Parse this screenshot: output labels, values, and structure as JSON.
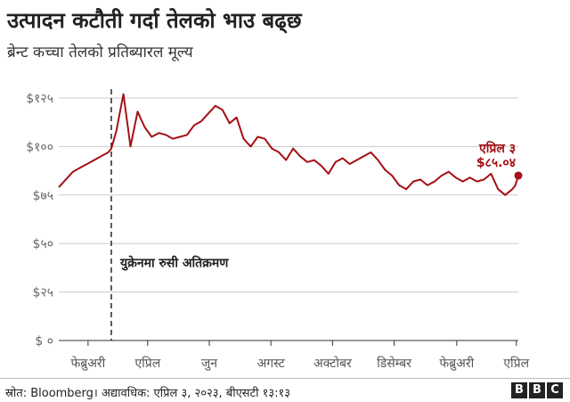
{
  "header": {
    "title": "उत्पादन कटौती गर्दा तेलको भाउ बढ्छ",
    "subtitle": "ब्रेन्ट कच्चा तेलको प्रतिब्यारल मूल्य"
  },
  "footer": {
    "source": "स्रोत: Bloomberg। अद्यावधिक: एप्रिल ३, २०२३, बीएसटी १३:१३",
    "logo_letters": [
      "B",
      "B",
      "C"
    ]
  },
  "chart_data": {
    "type": "line",
    "title": "उत्पादन कटौती गर्दा तेलको भाउ बढ्छ",
    "subtitle": "ब्रेन्ट कच्चा तेलको प्रतिब्यारल मूल्य",
    "line_color": "#a50f15",
    "ylim": [
      0,
      125
    ],
    "y_ticks": [
      {
        "value": 0,
        "label": "$ ०"
      },
      {
        "value": 25,
        "label": "$२५"
      },
      {
        "value": 50,
        "label": "$५०"
      },
      {
        "value": 75,
        "label": "$७५"
      },
      {
        "value": 100,
        "label": "$१००"
      },
      {
        "value": 125,
        "label": "$१२५"
      }
    ],
    "x_ticks": [
      {
        "value": "2022-02-01",
        "label": "फेब्रुअरी"
      },
      {
        "value": "2022-04-01",
        "label": "एप्रिल"
      },
      {
        "value": "2022-06-01",
        "label": "जुन"
      },
      {
        "value": "2022-08-01",
        "label": "अगस्ट"
      },
      {
        "value": "2022-10-01",
        "label": "अक्टोबर"
      },
      {
        "value": "2022-12-01",
        "label": "डिसेम्बर"
      },
      {
        "value": "2023-02-01",
        "label": "फेब्रुअरी"
      },
      {
        "value": "2023-04-01",
        "label": "एप्रिल"
      }
    ],
    "x_range": [
      "2022-01-03",
      "2023-04-03"
    ],
    "grid": "horizontal",
    "series": [
      {
        "points": [
          [
            "2022-01-03",
            79
          ],
          [
            "2022-01-10",
            83
          ],
          [
            "2022-01-17",
            87
          ],
          [
            "2022-01-24",
            89
          ],
          [
            "2022-01-31",
            91
          ],
          [
            "2022-02-07",
            93
          ],
          [
            "2022-02-14",
            95
          ],
          [
            "2022-02-21",
            97
          ],
          [
            "2022-02-24",
            99
          ],
          [
            "2022-03-01",
            108
          ],
          [
            "2022-03-08",
            127
          ],
          [
            "2022-03-15",
            100
          ],
          [
            "2022-03-22",
            118
          ],
          [
            "2022-03-29",
            110
          ],
          [
            "2022-04-05",
            105
          ],
          [
            "2022-04-12",
            107
          ],
          [
            "2022-04-19",
            106
          ],
          [
            "2022-04-26",
            104
          ],
          [
            "2022-05-03",
            105
          ],
          [
            "2022-05-10",
            106
          ],
          [
            "2022-05-17",
            111
          ],
          [
            "2022-05-24",
            113
          ],
          [
            "2022-05-31",
            117
          ],
          [
            "2022-06-07",
            121
          ],
          [
            "2022-06-14",
            119
          ],
          [
            "2022-06-21",
            112
          ],
          [
            "2022-06-28",
            115
          ],
          [
            "2022-07-05",
            104
          ],
          [
            "2022-07-12",
            100
          ],
          [
            "2022-07-19",
            105
          ],
          [
            "2022-07-26",
            104
          ],
          [
            "2022-08-02",
            99
          ],
          [
            "2022-08-09",
            97
          ],
          [
            "2022-08-16",
            93
          ],
          [
            "2022-08-23",
            99
          ],
          [
            "2022-08-30",
            95
          ],
          [
            "2022-09-06",
            92
          ],
          [
            "2022-09-13",
            93
          ],
          [
            "2022-09-20",
            90
          ],
          [
            "2022-09-27",
            86
          ],
          [
            "2022-10-04",
            92
          ],
          [
            "2022-10-11",
            94
          ],
          [
            "2022-10-18",
            91
          ],
          [
            "2022-10-25",
            93
          ],
          [
            "2022-11-01",
            95
          ],
          [
            "2022-11-08",
            97
          ],
          [
            "2022-11-15",
            93
          ],
          [
            "2022-11-22",
            88
          ],
          [
            "2022-11-29",
            85
          ],
          [
            "2022-12-06",
            80
          ],
          [
            "2022-12-13",
            78
          ],
          [
            "2022-12-20",
            82
          ],
          [
            "2022-12-27",
            83
          ],
          [
            "2023-01-03",
            80
          ],
          [
            "2023-01-10",
            82
          ],
          [
            "2023-01-17",
            85
          ],
          [
            "2023-01-24",
            87
          ],
          [
            "2023-01-31",
            84
          ],
          [
            "2023-02-07",
            82
          ],
          [
            "2023-02-14",
            84
          ],
          [
            "2023-02-21",
            82
          ],
          [
            "2023-02-28",
            83
          ],
          [
            "2023-03-07",
            86
          ],
          [
            "2023-03-14",
            78
          ],
          [
            "2023-03-21",
            75
          ],
          [
            "2023-03-28",
            78
          ],
          [
            "2023-03-31",
            80
          ],
          [
            "2023-04-03",
            85.04
          ]
        ]
      }
    ],
    "annotations": [
      {
        "type": "vline",
        "x": "2022-02-24",
        "label": "युक्रेनमा रुसी अतिक्रमण",
        "label_y": 38
      },
      {
        "type": "endpoint",
        "x": "2023-04-03",
        "y": 85.04,
        "date_label": "एप्रिल ३",
        "value_label": "$८५.०४"
      }
    ]
  }
}
